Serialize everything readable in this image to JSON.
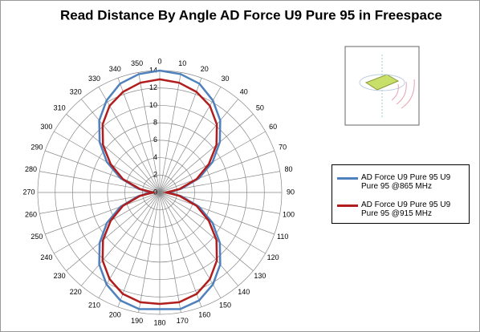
{
  "chart_data": {
    "type": "radar",
    "title": "Read Distance By Angle AD Force U9 Pure 95 in Freespace",
    "categories": [
      0,
      10,
      20,
      30,
      40,
      50,
      60,
      70,
      80,
      90,
      100,
      110,
      120,
      130,
      140,
      150,
      160,
      170,
      180,
      190,
      200,
      210,
      220,
      230,
      240,
      250,
      260,
      270,
      280,
      290,
      300,
      310,
      320,
      330,
      340,
      350
    ],
    "rlim": [
      0,
      14
    ],
    "rticks": [
      0,
      2,
      4,
      6,
      8,
      10,
      12,
      14
    ],
    "grid": true,
    "legend": "right",
    "series": [
      {
        "name": "AD Force U9 Pure 95 U9 Pure 95 @865 MHz",
        "color": "#4f81bd",
        "values": [
          14,
          13.8,
          13.3,
          12.2,
          10.8,
          9,
          7,
          4.8,
          2.5,
          1,
          2.5,
          4.8,
          7,
          9,
          10.8,
          12.2,
          13.2,
          13.6,
          13.4,
          13.6,
          13.2,
          12.2,
          10.8,
          9,
          7,
          4.8,
          2.5,
          1,
          2.5,
          4.8,
          7,
          9,
          10.8,
          12.2,
          13.3,
          13.8
        ]
      },
      {
        "name": "AD Force U9 Pure 95 U9 Pure 95 @915 MHz",
        "color": "#b11c1c",
        "values": [
          13,
          12.8,
          12.3,
          11.5,
          10.2,
          8.5,
          6.5,
          4.5,
          2.3,
          0.8,
          2.3,
          4.5,
          6.5,
          8.5,
          10.2,
          11.5,
          12.4,
          12.8,
          12.8,
          12.8,
          12.4,
          11.5,
          10.2,
          8.5,
          6.5,
          4.5,
          2.3,
          0.8,
          2.3,
          4.5,
          6.5,
          8.5,
          10.2,
          11.5,
          12.3,
          12.8
        ]
      }
    ]
  }
}
